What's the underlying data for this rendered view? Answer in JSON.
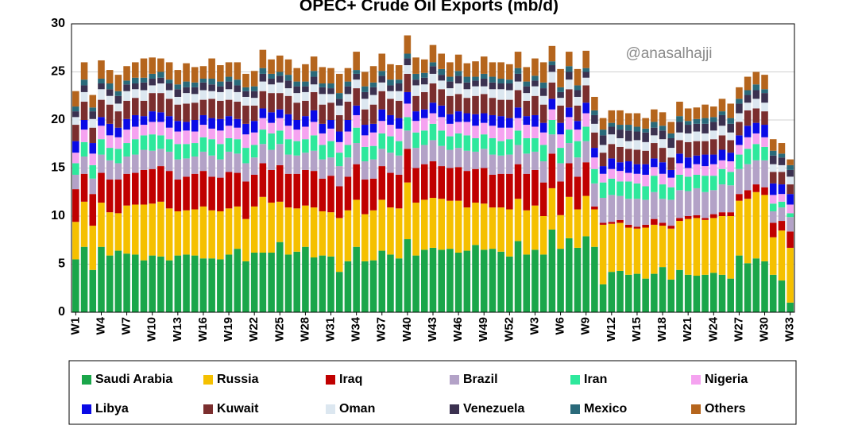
{
  "chart_data": {
    "type": "bar",
    "stacked": true,
    "title": "OPEC+ Crude Oil Exports (mb/d)",
    "annotation": "@anasalhajji",
    "categories": [
      "W1",
      null,
      null,
      "W4",
      null,
      null,
      "W7",
      null,
      null,
      "W10",
      null,
      null,
      "W13",
      null,
      null,
      "W16",
      null,
      null,
      "W19",
      null,
      null,
      "W22",
      null,
      null,
      "W25",
      null,
      null,
      "W28",
      null,
      null,
      "W31",
      null,
      null,
      "W34",
      null,
      null,
      "W37",
      null,
      null,
      "W40",
      null,
      null,
      "W43",
      null,
      null,
      "W46",
      null,
      null,
      "W49",
      null,
      null,
      "W52",
      null,
      null,
      "W3",
      null,
      null,
      "W6",
      null,
      null,
      "W9",
      null,
      null,
      "W12",
      null,
      null,
      "W15",
      null,
      null,
      "W18",
      null,
      null,
      "W21",
      null,
      null,
      "W24",
      null,
      null,
      "W27",
      null,
      null,
      "W30",
      null,
      null,
      "W33"
    ],
    "ylim": [
      0,
      30
    ],
    "yticks": [
      0,
      5,
      10,
      15,
      20,
      25,
      30
    ],
    "grid": true,
    "legend": "bottom",
    "series": [
      {
        "name": "Saudi Arabia",
        "color": "#1aa64a",
        "values": [
          5.5,
          6.8,
          4.4,
          6.8,
          5.9,
          6.4,
          6.1,
          6.0,
          5.4,
          5.9,
          5.8,
          5.4,
          5.9,
          6.0,
          5.9,
          5.6,
          5.6,
          5.5,
          6.0,
          6.6,
          5.3,
          6.2,
          6.2,
          6.2,
          7.3,
          6.0,
          6.3,
          6.8,
          5.7,
          5.9,
          5.8,
          4.2,
          5.3,
          6.8,
          5.3,
          5.4,
          6.4,
          6.0,
          5.6,
          7.6,
          5.9,
          6.5,
          6.7,
          6.5,
          6.6,
          6.2,
          6.4,
          7.0,
          6.5,
          6.6,
          6.3,
          5.8,
          7.4,
          6.0,
          6.5,
          6.0,
          8.6,
          6.6,
          7.7,
          6.7,
          7.9,
          6.8,
          2.9,
          4.2,
          4.3,
          3.9,
          4.0,
          3.5,
          4.0,
          4.7,
          3.4,
          4.4,
          3.9,
          3.8,
          3.9,
          4.1,
          3.9,
          3.5,
          5.9,
          5.1,
          5.6,
          5.3,
          3.9,
          3.3,
          1.0
        ]
      },
      {
        "name": "Russia",
        "color": "#f5c000",
        "values": [
          3.9,
          4.7,
          4.6,
          4.6,
          4.5,
          3.9,
          5.0,
          5.2,
          5.8,
          5.4,
          5.7,
          5.4,
          4.6,
          4.6,
          4.8,
          5.4,
          5.0,
          5.0,
          4.8,
          4.4,
          4.4,
          4.8,
          5.8,
          5.2,
          4.2,
          4.9,
          4.5,
          4.3,
          5.2,
          4.6,
          4.6,
          5.6,
          5.3,
          4.9,
          4.9,
          5.2,
          5.3,
          4.9,
          5.2,
          5.9,
          5.5,
          5.2,
          5.2,
          5.3,
          5.0,
          5.4,
          4.5,
          4.4,
          4.8,
          4.3,
          4.6,
          4.9,
          4.4,
          4.6,
          4.6,
          4.0,
          4.3,
          3.5,
          4.3,
          4.0,
          4.2,
          3.9,
          6.2,
          5.0,
          5.0,
          4.9,
          4.7,
          5.3,
          5.1,
          4.3,
          5.3,
          5.1,
          5.8,
          6.0,
          5.7,
          5.7,
          6.1,
          6.5,
          5.7,
          6.7,
          6.9,
          6.9,
          3.9,
          5.2,
          5.7
        ]
      },
      {
        "name": "Iraq",
        "color": "#c00000",
        "values": [
          3.4,
          2.9,
          3.3,
          3.1,
          3.4,
          3.5,
          3.3,
          3.3,
          3.6,
          3.6,
          3.7,
          3.9,
          3.3,
          3.5,
          3.7,
          3.7,
          3.5,
          3.5,
          3.8,
          3.5,
          3.9,
          3.3,
          3.5,
          3.4,
          3.8,
          3.5,
          3.6,
          3.7,
          3.8,
          3.4,
          3.8,
          3.3,
          3.5,
          3.7,
          3.6,
          3.3,
          3.5,
          3.6,
          3.5,
          3.5,
          3.6,
          3.7,
          3.8,
          3.4,
          3.4,
          3.5,
          3.8,
          3.5,
          3.7,
          3.4,
          3.5,
          3.7,
          3.6,
          3.8,
          3.7,
          3.5,
          3.6,
          3.5,
          3.5,
          3.4,
          3.5,
          0.3,
          0.2,
          0.2,
          0.3,
          0.3,
          0.2,
          0.3,
          0.6,
          0.3,
          0.3,
          0.3,
          0.3,
          0.3,
          0.2,
          0.4,
          0.4,
          0.4,
          0.7,
          0.9,
          0.8,
          0.8,
          1.5,
          1.0,
          1.7
        ]
      },
      {
        "name": "Brazil",
        "color": "#b3a2c7",
        "values": [
          1.5,
          1.8,
          1.6,
          1.9,
          2.0,
          1.7,
          1.8,
          1.9,
          2.1,
          1.9,
          1.8,
          2.0,
          2.1,
          1.9,
          1.8,
          2.0,
          2.2,
          1.9,
          2.1,
          2.0,
          1.9,
          1.8,
          2.0,
          2.1,
          2.2,
          2.0,
          1.9,
          1.8,
          2.1,
          2.0,
          1.9,
          2.1,
          2.0,
          2.2,
          1.9,
          2.0,
          1.8,
          2.1,
          2.0,
          1.9,
          2.1,
          2.0,
          2.2,
          2.1,
          1.9,
          2.0,
          2.1,
          1.8,
          2.0,
          2.1,
          1.9,
          2.0,
          2.0,
          2.1,
          1.9,
          2.2,
          2.0,
          1.9,
          2.1,
          2.0,
          2.2,
          2.4,
          2.6,
          2.8,
          2.5,
          2.7,
          2.9,
          2.6,
          2.8,
          2.5,
          2.7,
          2.9,
          2.6,
          2.8,
          2.7,
          2.5,
          2.9,
          2.8,
          2.6,
          2.7,
          2.5,
          2.8,
          1.2,
          1.4,
          1.5
        ]
      },
      {
        "name": "Iran",
        "color": "#2ee89c",
        "values": [
          1.2,
          1.5,
          1.4,
          1.6,
          1.3,
          1.5,
          1.4,
          1.6,
          1.5,
          1.7,
          1.4,
          1.3,
          1.6,
          1.5,
          1.4,
          1.5,
          1.7,
          1.6,
          1.4,
          1.5,
          1.6,
          1.3,
          1.5,
          1.7,
          1.4,
          1.6,
          1.5,
          1.4,
          1.6,
          1.5,
          1.7,
          1.4,
          1.3,
          1.6,
          1.5,
          1.4,
          1.6,
          1.7,
          1.5,
          1.4,
          1.6,
          1.5,
          1.7,
          1.6,
          1.4,
          1.5,
          1.6,
          1.4,
          1.5,
          1.7,
          1.5,
          1.6,
          1.5,
          1.6,
          1.4,
          1.7,
          1.5,
          1.6,
          1.4,
          1.7,
          1.5,
          1.5,
          1.6,
          1.7,
          1.5,
          1.8,
          1.6,
          1.4,
          1.7,
          1.5,
          1.3,
          1.6,
          1.5,
          1.4,
          1.7,
          1.5,
          1.6,
          1.4,
          1.5,
          1.6,
          1.7,
          1.4,
          0.8,
          0.6,
          0.4
        ]
      },
      {
        "name": "Nigeria",
        "color": "#f5a3f0",
        "values": [
          1.1,
          1.3,
          1.2,
          1.4,
          1.3,
          1.2,
          1.4,
          1.3,
          1.1,
          1.3,
          1.4,
          1.2,
          1.3,
          1.4,
          1.2,
          1.3,
          1.1,
          1.4,
          1.3,
          1.2,
          1.4,
          1.3,
          1.2,
          1.1,
          1.3,
          1.4,
          1.2,
          1.3,
          1.4,
          1.2,
          1.3,
          1.1,
          1.4,
          1.3,
          1.2,
          1.4,
          1.3,
          1.2,
          1.3,
          1.4,
          1.2,
          1.3,
          1.1,
          1.4,
          1.3,
          1.2,
          1.4,
          1.3,
          1.2,
          1.3,
          1.4,
          1.2,
          1.3,
          1.4,
          1.2,
          1.3,
          1.1,
          1.4,
          1.3,
          1.2,
          1.4,
          1.2,
          0.9,
          1.0,
          1.1,
          0.9,
          1.0,
          1.2,
          0.9,
          1.1,
          1.0,
          1.2,
          0.9,
          1.1,
          1.0,
          1.2,
          0.9,
          1.1,
          1.0,
          1.2,
          1.1,
          1.0,
          0.9,
          0.8,
          0.9
        ]
      },
      {
        "name": "Libya",
        "color": "#0a0ae6",
        "values": [
          1.2,
          1.0,
          1.1,
          0.9,
          1.2,
          1.0,
          1.1,
          1.2,
          0.9,
          1.1,
          1.0,
          1.2,
          1.1,
          0.9,
          1.2,
          1.0,
          1.1,
          1.2,
          1.0,
          0.9,
          1.1,
          1.2,
          1.0,
          1.1,
          0.9,
          1.2,
          1.0,
          1.1,
          1.2,
          1.0,
          0.9,
          1.1,
          1.2,
          1.0,
          1.1,
          0.9,
          1.2,
          1.0,
          1.1,
          1.2,
          1.0,
          0.9,
          1.1,
          1.2,
          1.0,
          1.1,
          0.9,
          1.2,
          1.0,
          1.1,
          1.2,
          1.0,
          1.1,
          0.9,
          1.2,
          1.0,
          1.1,
          1.2,
          1.0,
          0.9,
          1.1,
          1.0,
          0.8,
          1.1,
          0.9,
          1.2,
          1.0,
          1.1,
          0.9,
          1.2,
          0.8,
          1.0,
          1.1,
          0.9,
          1.2,
          1.0,
          1.1,
          0.9,
          1.0,
          1.2,
          1.1,
          1.3,
          1.2,
          1.0,
          1.1
        ]
      },
      {
        "name": "Kuwait",
        "color": "#7b2e2e",
        "values": [
          1.7,
          1.9,
          1.6,
          1.8,
          2.0,
          1.7,
          1.9,
          1.8,
          1.6,
          1.9,
          2.0,
          1.8,
          1.7,
          1.9,
          1.8,
          1.6,
          2.0,
          1.9,
          1.7,
          1.8,
          1.9,
          1.6,
          1.8,
          2.0,
          1.7,
          1.9,
          1.8,
          1.6,
          1.9,
          2.0,
          1.8,
          1.7,
          1.9,
          1.8,
          1.6,
          2.0,
          1.9,
          1.7,
          1.8,
          1.9,
          1.6,
          1.8,
          2.0,
          1.7,
          1.9,
          1.8,
          1.6,
          1.9,
          2.0,
          1.8,
          1.7,
          1.9,
          1.8,
          1.6,
          2.0,
          1.9,
          1.7,
          1.8,
          1.9,
          1.6,
          1.8,
          1.6,
          1.4,
          1.5,
          1.6,
          1.3,
          1.5,
          1.4,
          1.6,
          1.5,
          1.3,
          1.4,
          1.6,
          1.5,
          1.4,
          1.6,
          1.5,
          1.3,
          1.4,
          1.6,
          1.5,
          1.4,
          1.2,
          1.3,
          1.0
        ]
      },
      {
        "name": "Oman",
        "color": "#dce7f0",
        "values": [
          0.8,
          1.0,
          0.9,
          1.1,
          0.9,
          0.8,
          1.0,
          0.9,
          1.1,
          0.8,
          1.0,
          0.9,
          0.8,
          1.1,
          0.9,
          1.0,
          0.8,
          0.9,
          1.1,
          1.0,
          0.9,
          0.8,
          1.0,
          0.9,
          1.1,
          0.8,
          1.0,
          0.9,
          0.8,
          1.1,
          0.9,
          1.0,
          0.8,
          0.9,
          1.1,
          1.0,
          0.9,
          0.8,
          1.0,
          0.9,
          1.1,
          0.8,
          1.0,
          0.9,
          0.8,
          1.1,
          0.9,
          1.0,
          0.8,
          0.9,
          1.1,
          1.0,
          0.9,
          0.8,
          1.0,
          0.9,
          1.1,
          0.8,
          1.0,
          0.9,
          0.8,
          0.9,
          0.8,
          1.0,
          0.9,
          0.8,
          1.0,
          0.9,
          0.8,
          0.9,
          1.0,
          0.8,
          0.9,
          1.0,
          0.8,
          0.9,
          1.0,
          0.8,
          0.9,
          0.8,
          1.0,
          0.9,
          0.8,
          0.7,
          0.8
        ]
      },
      {
        "name": "Venezuela",
        "color": "#3b3150",
        "values": [
          0.6,
          0.7,
          0.8,
          0.6,
          0.7,
          0.8,
          0.7,
          0.6,
          0.8,
          0.7,
          0.6,
          0.7,
          0.8,
          0.6,
          0.7,
          0.8,
          0.7,
          0.6,
          0.8,
          0.7,
          0.6,
          0.7,
          0.8,
          0.6,
          0.7,
          0.8,
          0.7,
          0.6,
          0.8,
          0.7,
          0.6,
          0.7,
          0.8,
          0.6,
          0.7,
          0.8,
          0.7,
          0.6,
          0.8,
          0.7,
          0.6,
          0.7,
          0.8,
          0.6,
          0.7,
          0.8,
          0.7,
          0.6,
          0.8,
          0.7,
          0.6,
          0.7,
          0.8,
          0.7,
          0.6,
          0.8,
          0.7,
          0.6,
          0.8,
          0.7,
          0.6,
          0.9,
          1.0,
          0.8,
          0.9,
          1.1,
          0.9,
          1.0,
          0.8,
          0.9,
          1.0,
          1.1,
          0.9,
          0.8,
          1.0,
          0.9,
          1.1,
          0.9,
          1.0,
          0.8,
          0.9,
          1.0,
          0.9,
          0.8,
          0.7
        ]
      },
      {
        "name": "Mexico",
        "color": "#2a6a7a",
        "values": [
          0.5,
          0.6,
          0.4,
          0.5,
          0.6,
          0.5,
          0.4,
          0.6,
          0.5,
          0.5,
          0.6,
          0.4,
          0.5,
          0.6,
          0.5,
          0.4,
          0.6,
          0.5,
          0.5,
          0.6,
          0.4,
          0.5,
          0.6,
          0.5,
          0.4,
          0.6,
          0.5,
          0.5,
          0.6,
          0.4,
          0.5,
          0.6,
          0.5,
          0.4,
          0.6,
          0.5,
          0.5,
          0.6,
          0.4,
          0.5,
          0.6,
          0.5,
          0.4,
          0.6,
          0.5,
          0.5,
          0.6,
          0.4,
          0.5,
          0.6,
          0.5,
          0.4,
          0.6,
          0.5,
          0.5,
          0.6,
          0.4,
          0.5,
          0.6,
          0.5,
          0.4,
          0.5,
          0.6,
          0.4,
          0.5,
          0.6,
          0.5,
          0.4,
          0.6,
          0.5,
          0.5,
          0.6,
          0.4,
          0.5,
          0.6,
          0.5,
          0.4,
          0.6,
          0.5,
          0.5,
          0.6,
          0.4,
          0.5,
          0.4,
          0.5
        ]
      },
      {
        "name": "Others",
        "color": "#b5651d",
        "values": [
          1.6,
          1.8,
          1.3,
          1.9,
          1.4,
          1.7,
          1.5,
          1.6,
          2.0,
          1.7,
          1.4,
          1.8,
          1.5,
          1.9,
          1.6,
          1.3,
          2.1,
          1.7,
          1.5,
          1.8,
          1.4,
          1.6,
          1.9,
          1.5,
          1.7,
          1.6,
          1.4,
          1.8,
          1.5,
          1.7,
          1.6,
          2.0,
          1.4,
          1.9,
          1.5,
          1.7,
          1.8,
          1.6,
          1.5,
          1.9,
          1.7,
          1.4,
          1.8,
          1.6,
          1.5,
          1.7,
          1.4,
          1.6,
          1.8,
          1.5,
          1.7,
          1.6,
          1.7,
          1.5,
          1.8,
          2.1,
          1.6,
          1.9,
          1.5,
          1.7,
          1.8,
          1.4,
          1.2,
          1.3,
          1.5,
          1.2,
          1.4,
          1.1,
          1.3,
          1.4,
          1.2,
          1.5,
          1.3,
          1.2,
          1.4,
          1.1,
          1.3,
          1.5,
          1.2,
          1.4,
          1.3,
          1.5,
          1.2,
          1.1,
          0.6
        ]
      }
    ]
  }
}
